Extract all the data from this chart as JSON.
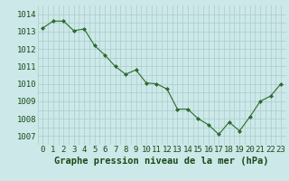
{
  "x": [
    0,
    1,
    2,
    3,
    4,
    5,
    6,
    7,
    8,
    9,
    10,
    11,
    12,
    13,
    14,
    15,
    16,
    17,
    18,
    19,
    20,
    21,
    22,
    23
  ],
  "y": [
    1013.2,
    1013.6,
    1013.6,
    1013.05,
    1013.15,
    1012.2,
    1011.65,
    1011.0,
    1010.55,
    1010.8,
    1010.05,
    1010.0,
    1009.7,
    1008.55,
    1008.55,
    1008.0,
    1007.65,
    1007.1,
    1007.8,
    1007.3,
    1008.1,
    1009.0,
    1009.3,
    1010.0
  ],
  "line_color": "#2d6a2d",
  "marker": "D",
  "marker_size": 2.0,
  "bg_color": "#cce8e8",
  "grid_color": "#aacccc",
  "xlabel": "Graphe pression niveau de la mer (hPa)",
  "xlabel_color": "#1a4a1a",
  "xlabel_fontsize": 7.5,
  "tick_color": "#1a4a1a",
  "tick_fontsize": 6.5,
  "ylim": [
    1006.5,
    1014.5
  ],
  "yticks": [
    1007,
    1008,
    1009,
    1010,
    1011,
    1012,
    1013,
    1014
  ],
  "xticks": [
    0,
    1,
    2,
    3,
    4,
    5,
    6,
    7,
    8,
    9,
    10,
    11,
    12,
    13,
    14,
    15,
    16,
    17,
    18,
    19,
    20,
    21,
    22,
    23
  ]
}
